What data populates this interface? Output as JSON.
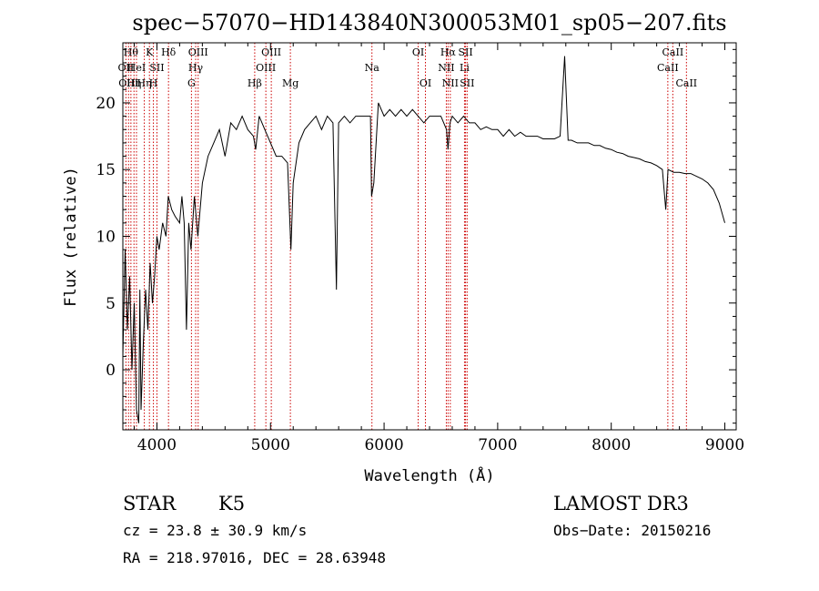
{
  "chart_data": {
    "type": "line",
    "title": "spec−57070−HD143840N300053M01_sp05−207.fits",
    "xlabel": "Wavelength (Å)",
    "ylabel": "Flux (relative)",
    "xlim": [
      3700,
      9100
    ],
    "ylim": [
      -4.5,
      24.5
    ],
    "x_ticks": [
      4000,
      5000,
      6000,
      7000,
      8000,
      9000
    ],
    "y_ticks": [
      0,
      5,
      10,
      15,
      20
    ],
    "grid": false,
    "series": [
      {
        "points": [
          [
            3700,
            1
          ],
          [
            3720,
            9
          ],
          [
            3740,
            3
          ],
          [
            3760,
            7
          ],
          [
            3780,
            0
          ],
          [
            3800,
            5
          ],
          [
            3820,
            -3
          ],
          [
            3840,
            -4
          ],
          [
            3850,
            6
          ],
          [
            3860,
            -3
          ],
          [
            3880,
            2
          ],
          [
            3900,
            6
          ],
          [
            3920,
            3
          ],
          [
            3940,
            8
          ],
          [
            3960,
            5
          ],
          [
            3980,
            7
          ],
          [
            4000,
            10
          ],
          [
            4020,
            9
          ],
          [
            4050,
            11
          ],
          [
            4080,
            10
          ],
          [
            4100,
            13
          ],
          [
            4130,
            12
          ],
          [
            4160,
            11.5
          ],
          [
            4200,
            11
          ],
          [
            4220,
            13
          ],
          [
            4240,
            11
          ],
          [
            4260,
            3
          ],
          [
            4280,
            11
          ],
          [
            4300,
            9
          ],
          [
            4330,
            13
          ],
          [
            4360,
            10
          ],
          [
            4400,
            14
          ],
          [
            4450,
            16
          ],
          [
            4500,
            17
          ],
          [
            4550,
            18
          ],
          [
            4600,
            16
          ],
          [
            4650,
            18.5
          ],
          [
            4700,
            18
          ],
          [
            4750,
            19
          ],
          [
            4800,
            18
          ],
          [
            4850,
            17.5
          ],
          [
            4870,
            16.5
          ],
          [
            4900,
            19
          ],
          [
            4950,
            18
          ],
          [
            5000,
            17
          ],
          [
            5050,
            16
          ],
          [
            5100,
            16
          ],
          [
            5150,
            15.5
          ],
          [
            5180,
            9
          ],
          [
            5200,
            14
          ],
          [
            5250,
            17
          ],
          [
            5300,
            18
          ],
          [
            5350,
            18.5
          ],
          [
            5400,
            19
          ],
          [
            5450,
            18
          ],
          [
            5500,
            19
          ],
          [
            5550,
            18.5
          ],
          [
            5580,
            6
          ],
          [
            5600,
            18.5
          ],
          [
            5650,
            19
          ],
          [
            5700,
            18.5
          ],
          [
            5750,
            19
          ],
          [
            5800,
            19
          ],
          [
            5850,
            19
          ],
          [
            5880,
            19
          ],
          [
            5890,
            13
          ],
          [
            5910,
            14
          ],
          [
            5950,
            20
          ],
          [
            6000,
            19
          ],
          [
            6050,
            19.5
          ],
          [
            6100,
            19
          ],
          [
            6150,
            19.5
          ],
          [
            6200,
            19
          ],
          [
            6250,
            19.5
          ],
          [
            6300,
            19
          ],
          [
            6350,
            18.5
          ],
          [
            6400,
            19
          ],
          [
            6450,
            19
          ],
          [
            6500,
            19
          ],
          [
            6550,
            18
          ],
          [
            6563,
            16.5
          ],
          [
            6580,
            18.5
          ],
          [
            6600,
            19
          ],
          [
            6650,
            18.5
          ],
          [
            6700,
            19
          ],
          [
            6750,
            18.5
          ],
          [
            6800,
            18.5
          ],
          [
            6850,
            18
          ],
          [
            6900,
            18.2
          ],
          [
            6950,
            18
          ],
          [
            7000,
            18
          ],
          [
            7050,
            17.5
          ],
          [
            7100,
            18
          ],
          [
            7150,
            17.5
          ],
          [
            7200,
            17.8
          ],
          [
            7250,
            17.5
          ],
          [
            7300,
            17.5
          ],
          [
            7350,
            17.5
          ],
          [
            7400,
            17.3
          ],
          [
            7450,
            17.3
          ],
          [
            7500,
            17.3
          ],
          [
            7550,
            17.5
          ],
          [
            7590,
            23.5
          ],
          [
            7620,
            17.2
          ],
          [
            7650,
            17.2
          ],
          [
            7700,
            17.0
          ],
          [
            7750,
            17.0
          ],
          [
            7800,
            17.0
          ],
          [
            7850,
            16.8
          ],
          [
            7900,
            16.8
          ],
          [
            7950,
            16.6
          ],
          [
            8000,
            16.5
          ],
          [
            8050,
            16.3
          ],
          [
            8100,
            16.2
          ],
          [
            8150,
            16.0
          ],
          [
            8200,
            15.9
          ],
          [
            8250,
            15.8
          ],
          [
            8300,
            15.6
          ],
          [
            8350,
            15.5
          ],
          [
            8400,
            15.3
          ],
          [
            8450,
            15.0
          ],
          [
            8480,
            12
          ],
          [
            8500,
            15
          ],
          [
            8550,
            14.8
          ],
          [
            8600,
            14.8
          ],
          [
            8650,
            14.7
          ],
          [
            8700,
            14.7
          ],
          [
            8750,
            14.5
          ],
          [
            8800,
            14.3
          ],
          [
            8850,
            14.0
          ],
          [
            8900,
            13.5
          ],
          [
            8950,
            12.5
          ],
          [
            9000,
            11
          ]
        ]
      }
    ],
    "line_markers": [
      {
        "wl": 3727,
        "label": "OII",
        "row": 1
      },
      {
        "wl": 3750,
        "label": "OIII",
        "row": 2
      },
      {
        "wl": 3771,
        "label": "Hθ",
        "row": 0
      },
      {
        "wl": 3798,
        "label": "Hη",
        "row": 2
      },
      {
        "wl": 3820,
        "label": "HeI",
        "row": 1
      },
      {
        "wl": 3889,
        "label": "Hη",
        "row": 2
      },
      {
        "wl": 3934,
        "label": "K",
        "row": 0
      },
      {
        "wl": 3969,
        "label": "H",
        "row": 2
      },
      {
        "wl": 4000,
        "label": "SII",
        "row": 1
      },
      {
        "wl": 4102,
        "label": "Hδ",
        "row": 0
      },
      {
        "wl": 4304,
        "label": "G",
        "row": 2
      },
      {
        "wl": 4341,
        "label": "Hγ",
        "row": 1
      },
      {
        "wl": 4363,
        "label": "OIII",
        "row": 0
      },
      {
        "wl": 4861,
        "label": "Hβ",
        "row": 2
      },
      {
        "wl": 4959,
        "label": "OIII",
        "row": 1
      },
      {
        "wl": 5007,
        "label": "OIII",
        "row": 0
      },
      {
        "wl": 5175,
        "label": "Mg",
        "row": 2
      },
      {
        "wl": 5893,
        "label": "Na",
        "row": 1
      },
      {
        "wl": 6300,
        "label": "OI",
        "row": 0
      },
      {
        "wl": 6364,
        "label": "OI",
        "row": 2
      },
      {
        "wl": 6548,
        "label": "NII",
        "row": 1
      },
      {
        "wl": 6563,
        "label": "Hα",
        "row": 0
      },
      {
        "wl": 6583,
        "label": "NII",
        "row": 2
      },
      {
        "wl": 6708,
        "label": "Li",
        "row": 1
      },
      {
        "wl": 6717,
        "label": "SII",
        "row": 0
      },
      {
        "wl": 6731,
        "label": "SII",
        "row": 2
      },
      {
        "wl": 8498,
        "label": "CaII",
        "row": 1
      },
      {
        "wl": 8542,
        "label": "CaII",
        "row": 0
      },
      {
        "wl": 8662,
        "label": "CaII",
        "row": 2
      }
    ],
    "marker_color": "#cc0000"
  },
  "info": {
    "class": "STAR",
    "subclass": "K5",
    "survey": "LAMOST DR3",
    "cz": "cz = 23.8 ± 30.9 km/s",
    "obs_date": "Obs−Date: 20150216",
    "radec": "RA = 218.97016, DEC =  28.63948"
  }
}
